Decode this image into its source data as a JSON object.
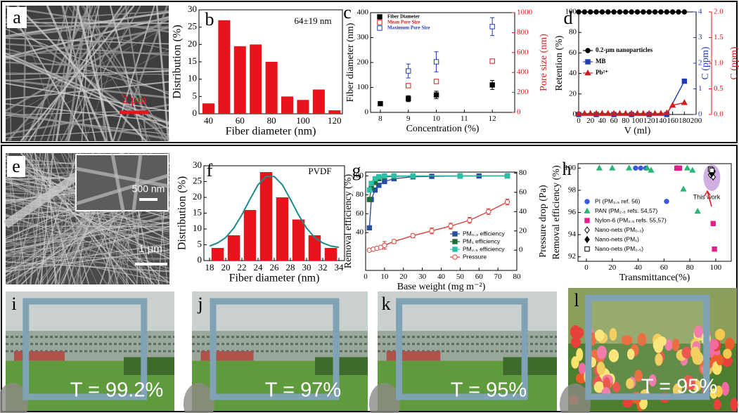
{
  "chart_data": [
    {
      "type": "histogram",
      "panel": "b",
      "annotation": "64±19 nm",
      "xlabel": "Fiber diameter (nm)",
      "ylabel": "Distribution (%)",
      "bins": [
        35,
        45,
        55,
        65,
        75,
        85,
        95,
        105,
        115,
        125
      ],
      "counts": [
        3,
        27,
        19.5,
        20,
        15,
        5,
        4,
        7,
        1
      ],
      "color": "#e8141b",
      "xlim": [
        34,
        125
      ],
      "xticks": [
        40,
        60,
        80,
        100,
        120
      ],
      "ylim": [
        0,
        30
      ],
      "yticks": [
        0,
        5,
        10,
        15,
        20,
        25,
        30
      ]
    },
    {
      "type": "scatter",
      "panel": "c",
      "xlabel": "Concentration (%)",
      "ylabel": "Fiber diameter (nm)",
      "y2label": "Pore size (nm)",
      "y2_color": "#e8141b",
      "xlim": [
        7.65,
        12.8
      ],
      "xticks": [
        8,
        9,
        10,
        11,
        12
      ],
      "ylim": [
        0,
        400
      ],
      "yticks": [
        0,
        100,
        200,
        300,
        400
      ],
      "y2lim": [
        0,
        1000
      ],
      "y2ticks": [
        0,
        200,
        400,
        600,
        800,
        1000
      ],
      "legend": "upper-left",
      "series": [
        {
          "name": "Fiber Diameter",
          "color": "#000000",
          "marker": "square",
          "x": [
            8,
            9,
            10,
            12
          ],
          "values": [
            35,
            55,
            70,
            110
          ],
          "errors": [
            6,
            12,
            15,
            18
          ]
        },
        {
          "name": "Mean Pore Size",
          "color": "#e8141b",
          "marker": "open-square",
          "axis": "y2",
          "x": [
            9,
            10,
            12
          ],
          "values": [
            268,
            310,
            514
          ]
        },
        {
          "name": "Maximum Pore Size",
          "color": "#1f3bb3",
          "marker": "open-square",
          "axis": "y2",
          "x": [
            9,
            10,
            12
          ],
          "values": [
            415,
            507,
            860
          ],
          "errors": [
            70,
            100,
            90
          ]
        }
      ]
    },
    {
      "type": "line",
      "panel": "d",
      "xlabel": "V (ml)",
      "ylabel": "Retention (%)",
      "y2label": "C (ppm)",
      "y3label": "C (ppm)",
      "y2_color": "#1f3bb3",
      "y3_color": "#e8141b",
      "xlim": [
        0,
        200
      ],
      "xticks": [
        0,
        20,
        40,
        60,
        80,
        100,
        120,
        140,
        160,
        180,
        200
      ],
      "ylim": [
        0,
        100
      ],
      "yticks": [
        0,
        20,
        40,
        60,
        80,
        100
      ],
      "y2lim": [
        0,
        4
      ],
      "y2ticks": [
        0,
        1,
        2,
        3,
        4
      ],
      "y3lim": [
        0,
        2
      ],
      "y3ticks": [
        {
          "value": 0,
          "label": "0.0"
        },
        {
          "value": 0.5,
          "label": "0.5"
        },
        {
          "value": 1,
          "label": "1.0"
        },
        {
          "value": 1.5,
          "label": "1.5"
        },
        {
          "value": 2,
          "label": "2.0"
        }
      ],
      "legend": "center-left",
      "series": [
        {
          "name": "0.2-μm nanoparticles",
          "color": "#000000",
          "marker": "circle",
          "x": [
            0,
            10,
            20,
            30,
            40,
            50,
            60,
            70,
            80,
            90,
            100,
            110,
            120,
            130,
            140,
            150,
            160,
            170,
            180
          ],
          "values": [
            100,
            100,
            100,
            100,
            100,
            100,
            100,
            100,
            100,
            100,
            100,
            100,
            100,
            100,
            100,
            100,
            100,
            100,
            100
          ]
        },
        {
          "name": "MB",
          "color": "#1f3bb3",
          "marker": "square",
          "axis": "y2",
          "x": [
            0,
            30,
            60,
            90,
            120,
            150,
            180
          ],
          "values": [
            0,
            0,
            0,
            0,
            0,
            0,
            1.3
          ]
        },
        {
          "name": "Pb²⁺",
          "color": "#d01c1c",
          "marker": "triangle",
          "axis": "y3",
          "x": [
            0,
            10,
            20,
            30,
            40,
            50,
            60,
            70,
            80,
            90,
            100,
            110,
            120,
            130,
            140,
            150,
            160,
            180
          ],
          "values": [
            0.02,
            0.02,
            0.02,
            0.02,
            0.02,
            0.02,
            0.02,
            0.02,
            0.02,
            0.02,
            0.02,
            0.02,
            0.02,
            0.02,
            0.02,
            0.03,
            0.18,
            0.23
          ]
        }
      ]
    },
    {
      "type": "histogram",
      "panel": "f",
      "annotation": "PVDF",
      "xlabel": "Fiber diameter (nm)",
      "ylabel": "Distribution (%)",
      "bins": [
        18,
        20,
        22,
        24,
        26,
        28,
        30,
        32,
        34
      ],
      "counts": [
        4,
        8,
        16,
        28,
        20,
        13,
        8,
        4
      ],
      "color": "#e8141b",
      "xlim": [
        17.3,
        34.7
      ],
      "xticks": [
        18,
        20,
        22,
        24,
        26,
        28,
        30,
        32,
        34
      ],
      "ylim": [
        0,
        30
      ],
      "yticks": [
        0,
        5,
        10,
        15,
        20,
        25,
        30
      ],
      "fit": {
        "color": "#1a8a8a",
        "x": [
          18,
          19,
          20,
          21,
          22,
          23,
          24,
          25,
          26,
          27,
          28,
          29,
          30,
          31,
          32,
          33,
          34
        ],
        "values": [
          4.6,
          5.6,
          7.3,
          10.3,
          14.5,
          19.4,
          24,
          26.6,
          26.6,
          24,
          19.4,
          14.5,
          10.3,
          7.3,
          5.6,
          4.6,
          4.2
        ]
      }
    },
    {
      "type": "line",
      "panel": "g",
      "xlabel": "Base weight (mg m⁻²)",
      "ylabel": "Removal efficiency (%)",
      "y2label": "Pressure  drop (Pa)",
      "xlim": [
        0,
        80
      ],
      "xticks": [
        0,
        10,
        20,
        30,
        40,
        50,
        60,
        70,
        80
      ],
      "ylim": [
        0,
        104
      ],
      "yticks": [
        40,
        60,
        80,
        100
      ],
      "y2lim": [
        -21,
        81
      ],
      "y2ticks": [
        0,
        20,
        40,
        60,
        80
      ],
      "legend": "lower-right",
      "series": [
        {
          "name": "PM₀.₃ efficiency",
          "color": "#2a4f9e",
          "marker": "square",
          "x": [
            2,
            3,
            5,
            7,
            10,
            15,
            25,
            35,
            50,
            60,
            75
          ],
          "values": [
            45,
            75,
            85,
            90,
            94,
            97,
            99,
            99.5,
            99.8,
            99.9,
            100
          ]
        },
        {
          "name": "PM₁ efficiency",
          "color": "#1f6b3a",
          "marker": "square",
          "x": [
            2,
            3,
            5,
            7,
            10,
            15,
            25,
            50,
            75
          ],
          "values": [
            75,
            87,
            93,
            97,
            99,
            99.5,
            99.8,
            100,
            100
          ]
        },
        {
          "name": "PM₂.₅ efficiency",
          "color": "#2dbfa5",
          "marker": "square",
          "x": [
            2,
            3,
            5,
            7,
            10,
            15,
            25,
            50,
            75
          ],
          "values": [
            85,
            92,
            97,
            99,
            100,
            100,
            100,
            100,
            100
          ]
        },
        {
          "name": "Pressure",
          "color": "#d9413a",
          "marker": "open-circle",
          "axis": "y2",
          "x": [
            2,
            4,
            6,
            8,
            10,
            15,
            25,
            35,
            45,
            55,
            65,
            75
          ],
          "values": [
            0,
            1,
            2,
            3,
            5,
            9,
            15,
            20,
            25,
            31,
            40,
            50
          ],
          "errors": [
            1,
            1,
            1,
            1,
            4,
            2,
            2,
            3,
            3,
            3,
            3,
            3
          ]
        }
      ]
    },
    {
      "type": "scatter",
      "panel": "h",
      "annotation": "This work",
      "xlabel": "Transmittance(%)",
      "ylabel": "Removal efficiency (%)",
      "xlim": [
        -6.5,
        112
      ],
      "xticks": [
        0,
        20,
        40,
        60,
        80,
        100
      ],
      "ylim": [
        91.6,
        100.4
      ],
      "yticks": [
        92,
        94,
        96,
        98,
        100
      ],
      "legend": "lower-left",
      "series": [
        {
          "name": "PI (PM₂.₅ ref. 56)",
          "color": "#3b5bdb",
          "marker": "circle",
          "x": [
            38,
            42,
            46,
            62
          ],
          "values": [
            100,
            100,
            100,
            97
          ]
        },
        {
          "name": "PAN (PM₂.₅ refs. 54,57)",
          "color": "#2bb673",
          "marker": "triangle",
          "x": [
            10,
            20,
            33,
            47,
            50,
            70,
            75,
            78,
            82,
            86
          ],
          "values": [
            100,
            100,
            100,
            100,
            99.8,
            100,
            98.1,
            100,
            99.8,
            96.1
          ]
        },
        {
          "name": "Nylon-6 (PM₂.₅ refs. 55,57)",
          "color": "#e0218a",
          "marker": "square",
          "x": [
            70,
            72,
            98,
            99
          ],
          "values": [
            100,
            100,
            95,
            92.7
          ]
        },
        {
          "name": "Nano-nets (PM₀.₃)",
          "color": "#000000",
          "marker": "open-diamond",
          "x": [
            96,
            97,
            98
          ],
          "values": [
            99.4,
            99.6,
            99.2
          ]
        },
        {
          "name": "Nano-nets (PM₁)",
          "color": "#000000",
          "marker": "diamond",
          "x": [
            97,
            98
          ],
          "values": [
            99.5,
            99.7
          ]
        },
        {
          "name": "Nano-nets (PM₂.₅)",
          "color": "#000000",
          "marker": "open-square",
          "x": [
            96,
            97
          ],
          "values": [
            99.9,
            99.8
          ]
        }
      ]
    }
  ],
  "images": [
    {
      "label": "a",
      "scale_bar": "2 μm"
    },
    {
      "label": "e",
      "scale_bar": "1 μm",
      "inset_scale_bar": "500 nm"
    },
    {
      "label": "i",
      "caption": "T = 99.2%"
    },
    {
      "label": "j",
      "caption": "T = 97%"
    },
    {
      "label": "k",
      "caption": "T = 95%"
    },
    {
      "label": "l",
      "caption": "T = 95%"
    }
  ]
}
